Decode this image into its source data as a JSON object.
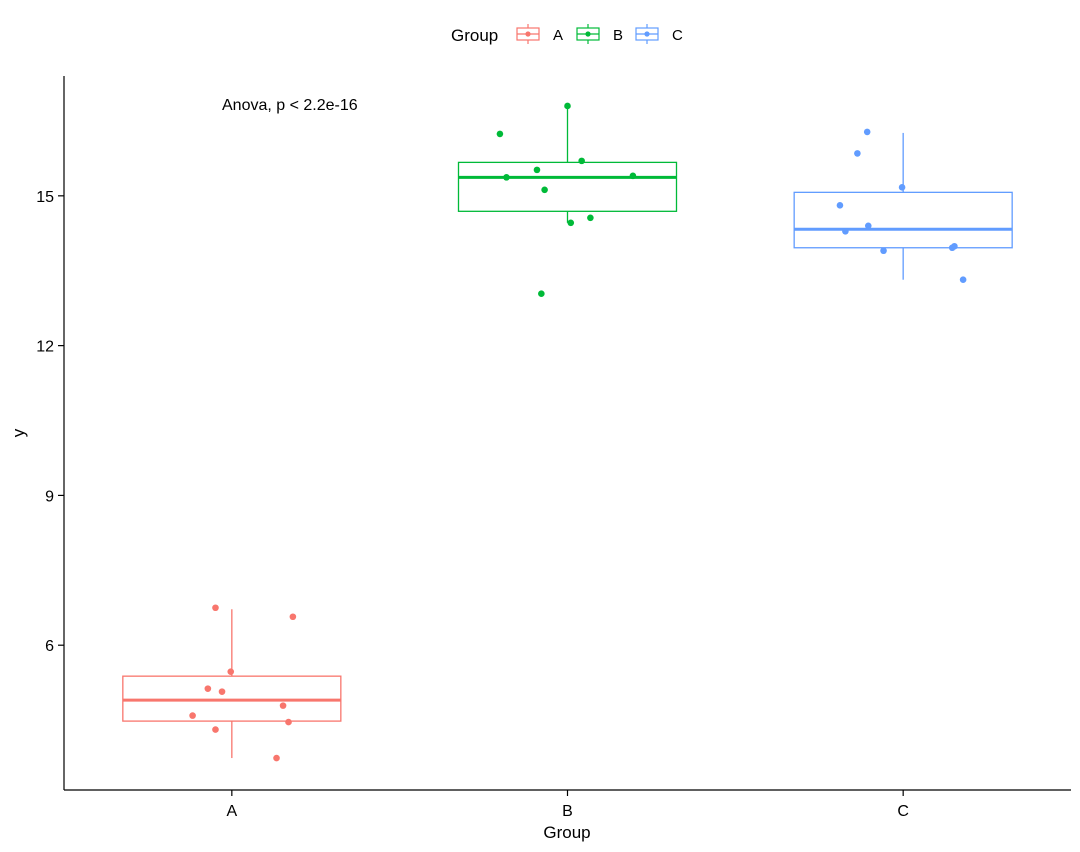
{
  "chart_data": {
    "type": "box",
    "title": "",
    "xlabel": "Group",
    "ylabel": "y",
    "categories": [
      "A",
      "B",
      "C"
    ],
    "yticks": [
      6,
      9,
      12,
      15
    ],
    "ylim": [
      3.1,
      17.4
    ],
    "annotation": "Anova, p < 2.2e-16",
    "legend": {
      "title": "Group",
      "position": "top",
      "entries": [
        "A",
        "B",
        "C"
      ]
    },
    "colors": {
      "A": "#F8766D",
      "B": "#00BA38",
      "C": "#619CFF"
    },
    "grid": false,
    "groups": [
      {
        "name": "A",
        "box": {
          "q1": 4.48,
          "median": 4.9,
          "q3": 5.38,
          "whisker_low": 3.74,
          "whisker_high": 6.72
        },
        "points": [
          {
            "x": -0.15,
            "y": 6.75
          },
          {
            "x": 0.56,
            "y": 6.57
          },
          {
            "x": -0.01,
            "y": 5.47
          },
          {
            "x": -0.22,
            "y": 5.13
          },
          {
            "x": -0.09,
            "y": 5.07
          },
          {
            "x": 0.47,
            "y": 4.79
          },
          {
            "x": -0.36,
            "y": 4.59
          },
          {
            "x": 0.52,
            "y": 4.46
          },
          {
            "x": -0.15,
            "y": 4.31
          },
          {
            "x": 0.41,
            "y": 3.74
          }
        ]
      },
      {
        "name": "B",
        "box": {
          "q1": 14.69,
          "median": 15.37,
          "q3": 15.67,
          "whisker_low": 14.46,
          "whisker_high": 16.8
        },
        "points": [
          {
            "x": 0.0,
            "y": 16.8
          },
          {
            "x": -0.62,
            "y": 16.24
          },
          {
            "x": 0.13,
            "y": 15.7
          },
          {
            "x": -0.28,
            "y": 15.52
          },
          {
            "x": -0.56,
            "y": 15.37
          },
          {
            "x": 0.6,
            "y": 15.4
          },
          {
            "x": -0.21,
            "y": 15.12
          },
          {
            "x": 0.21,
            "y": 14.56
          },
          {
            "x": 0.03,
            "y": 14.46
          },
          {
            "x": -0.24,
            "y": 13.04
          }
        ]
      },
      {
        "name": "C",
        "box": {
          "q1": 13.96,
          "median": 14.33,
          "q3": 15.07,
          "whisker_low": 13.32,
          "whisker_high": 16.26
        },
        "points": [
          {
            "x": -0.33,
            "y": 16.28
          },
          {
            "x": -0.42,
            "y": 15.85
          },
          {
            "x": -0.01,
            "y": 15.17
          },
          {
            "x": -0.58,
            "y": 14.81
          },
          {
            "x": -0.32,
            "y": 14.4
          },
          {
            "x": -0.53,
            "y": 14.29
          },
          {
            "x": 0.47,
            "y": 13.99
          },
          {
            "x": 0.45,
            "y": 13.96
          },
          {
            "x": -0.18,
            "y": 13.9
          },
          {
            "x": 0.55,
            "y": 13.32
          }
        ]
      }
    ]
  }
}
